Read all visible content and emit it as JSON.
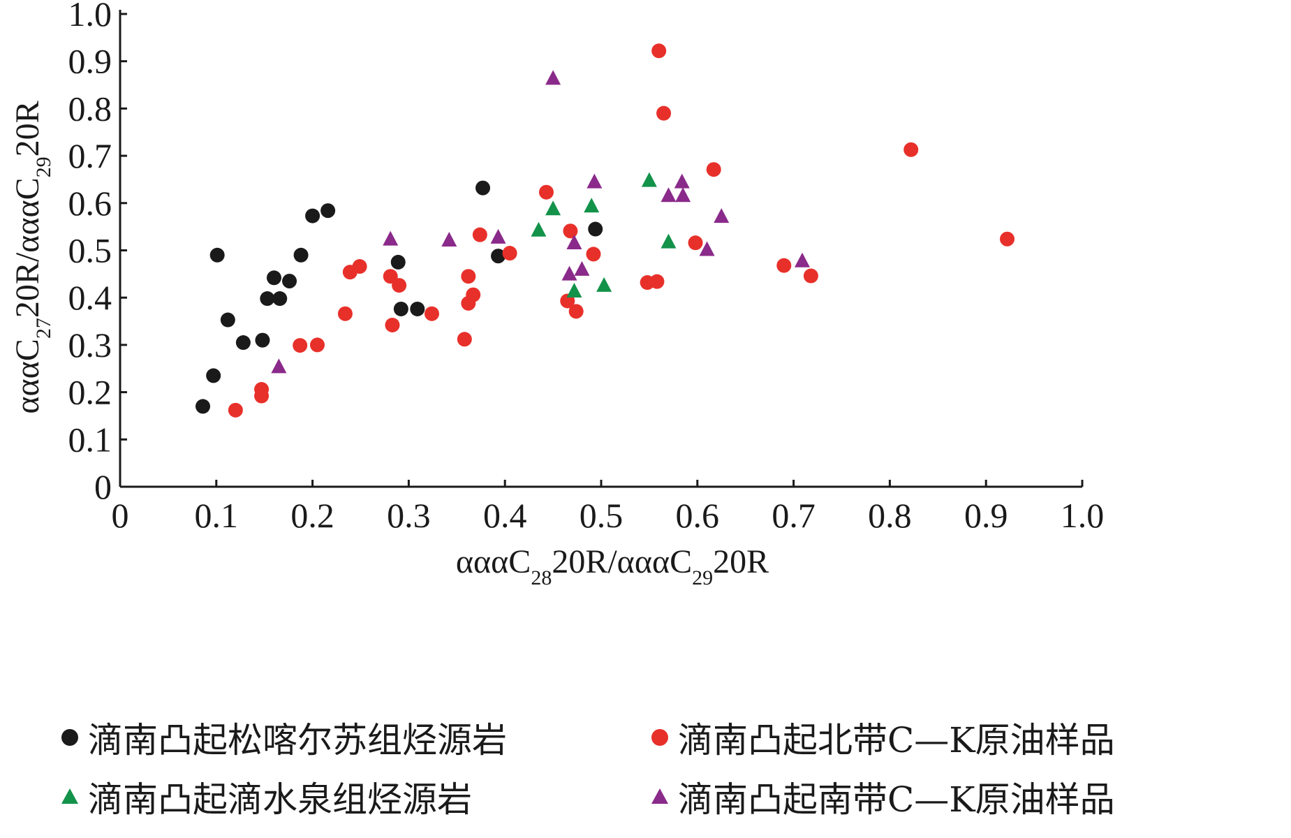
{
  "chart_data": {
    "type": "scatter",
    "xlabel_parts": [
      "αααC",
      "28",
      "20R/αααC",
      "29",
      "20R"
    ],
    "ylabel_parts": [
      "αααC",
      "27",
      "20R/αααC",
      "29",
      "20R"
    ],
    "xlim": [
      0,
      1.0
    ],
    "ylim": [
      0,
      1.0
    ],
    "x_ticks": [
      0,
      0.1,
      0.2,
      0.3,
      0.4,
      0.5,
      0.6,
      0.7,
      0.8,
      0.9,
      1.0
    ],
    "x_tick_labels": [
      "0",
      "0.1",
      "0.2",
      "0.3",
      "0.4",
      "0.5",
      "0.6",
      "0.7",
      "0.8",
      "0.9",
      "1.0"
    ],
    "y_ticks": [
      0,
      0.1,
      0.2,
      0.3,
      0.4,
      0.5,
      0.6,
      0.7,
      0.8,
      0.9,
      1.0
    ],
    "y_tick_labels": [
      "0",
      "0.1",
      "0.2",
      "0.3",
      "0.4",
      "0.5",
      "0.6",
      "0.7",
      "0.8",
      "0.9",
      "1.0"
    ],
    "grid": false,
    "legend_position": "bottom",
    "series": [
      {
        "name": "滴南凸起松喀尔苏组烃源岩",
        "marker": "circle",
        "color": "#1a1a1a",
        "points": [
          [
            0.086,
            0.17
          ],
          [
            0.097,
            0.235
          ],
          [
            0.101,
            0.49
          ],
          [
            0.112,
            0.353
          ],
          [
            0.128,
            0.305
          ],
          [
            0.148,
            0.31
          ],
          [
            0.153,
            0.398
          ],
          [
            0.16,
            0.442
          ],
          [
            0.166,
            0.398
          ],
          [
            0.176,
            0.435
          ],
          [
            0.188,
            0.49
          ],
          [
            0.2,
            0.573
          ],
          [
            0.216,
            0.584
          ],
          [
            0.289,
            0.475
          ],
          [
            0.292,
            0.376
          ],
          [
            0.309,
            0.376
          ],
          [
            0.377,
            0.632
          ],
          [
            0.393,
            0.488
          ],
          [
            0.494,
            0.545
          ]
        ]
      },
      {
        "name": "滴南凸起北带C—K原油样品",
        "marker": "circle",
        "color": "#e8302a",
        "points": [
          [
            0.12,
            0.162
          ],
          [
            0.147,
            0.192
          ],
          [
            0.147,
            0.206
          ],
          [
            0.187,
            0.299
          ],
          [
            0.205,
            0.3
          ],
          [
            0.234,
            0.366
          ],
          [
            0.239,
            0.454
          ],
          [
            0.249,
            0.466
          ],
          [
            0.281,
            0.445
          ],
          [
            0.283,
            0.342
          ],
          [
            0.29,
            0.426
          ],
          [
            0.324,
            0.366
          ],
          [
            0.358,
            0.312
          ],
          [
            0.362,
            0.445
          ],
          [
            0.362,
            0.388
          ],
          [
            0.367,
            0.406
          ],
          [
            0.374,
            0.533
          ],
          [
            0.405,
            0.494
          ],
          [
            0.443,
            0.623
          ],
          [
            0.465,
            0.393
          ],
          [
            0.468,
            0.541
          ],
          [
            0.474,
            0.371
          ],
          [
            0.492,
            0.492
          ],
          [
            0.548,
            0.432
          ],
          [
            0.558,
            0.434
          ],
          [
            0.56,
            0.922
          ],
          [
            0.565,
            0.79
          ],
          [
            0.598,
            0.516
          ],
          [
            0.617,
            0.671
          ],
          [
            0.69,
            0.468
          ],
          [
            0.718,
            0.446
          ],
          [
            0.822,
            0.713
          ],
          [
            0.922,
            0.524
          ]
        ]
      },
      {
        "name": "滴南凸起滴水泉组烃源岩",
        "marker": "triangle",
        "color": "#13924a",
        "points": [
          [
            0.435,
            0.541
          ],
          [
            0.45,
            0.586
          ],
          [
            0.472,
            0.412
          ],
          [
            0.49,
            0.592
          ],
          [
            0.503,
            0.424
          ],
          [
            0.55,
            0.646
          ],
          [
            0.57,
            0.516
          ]
        ]
      },
      {
        "name": "滴南凸起南带C—K原油样品",
        "marker": "triangle",
        "color": "#8a2a8a",
        "points": [
          [
            0.165,
            0.252
          ],
          [
            0.281,
            0.522
          ],
          [
            0.342,
            0.52
          ],
          [
            0.393,
            0.526
          ],
          [
            0.45,
            0.862
          ],
          [
            0.467,
            0.448
          ],
          [
            0.472,
            0.514
          ],
          [
            0.48,
            0.458
          ],
          [
            0.493,
            0.643
          ],
          [
            0.57,
            0.614
          ],
          [
            0.584,
            0.643
          ],
          [
            0.585,
            0.614
          ],
          [
            0.61,
            0.5
          ],
          [
            0.625,
            0.57
          ],
          [
            0.709,
            0.476
          ]
        ]
      }
    ]
  }
}
